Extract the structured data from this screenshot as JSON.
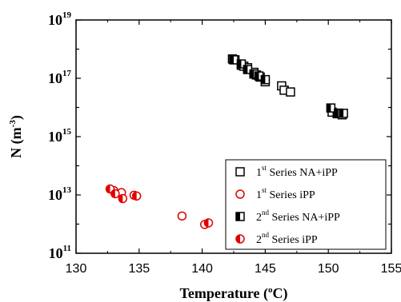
{
  "chart_data": {
    "type": "scatter",
    "title": "",
    "xlabel": {
      "pre": "Temperature (",
      "sup": "o",
      "post": "C)"
    },
    "ylabel": {
      "pre": "N (m",
      "sup": "-3",
      "post": ")"
    },
    "x_scale": "linear",
    "y_scale": "log",
    "xlim": [
      130,
      155
    ],
    "ylim": [
      100000000000.0,
      1e+19
    ],
    "x_ticks": [
      130,
      135,
      140,
      145,
      150,
      155
    ],
    "y_ticks": [
      {
        "base": "10",
        "exp": "11",
        "value": 100000000000.0
      },
      {
        "base": "10",
        "exp": "13",
        "value": 10000000000000.0
      },
      {
        "base": "10",
        "exp": "15",
        "value": 1000000000000000.0
      },
      {
        "base": "10",
        "exp": "17",
        "value": 1e+17
      },
      {
        "base": "10",
        "exp": "19",
        "value": 1e+19
      }
    ],
    "grid": false,
    "legend_position": "bottom-right",
    "series": [
      {
        "name": {
          "pre": "1",
          "sup": "st",
          "post": " Series NA+iPP"
        },
        "marker": "square-open",
        "color": "#000000",
        "points": [
          [
            142.4,
            4.6e+17
          ],
          [
            142.6,
            4.3e+17
          ],
          [
            143.1,
            2.8e+17
          ],
          [
            143.3,
            2.6e+17
          ],
          [
            143.6,
            2.3e+17
          ],
          [
            144.1,
            1.6e+17
          ],
          [
            144.3,
            1.3e+17
          ],
          [
            144.6,
            1.1e+17
          ],
          [
            145.0,
            7.6e+16
          ],
          [
            146.3,
            5.5e+16
          ],
          [
            146.5,
            3.9e+16
          ],
          [
            147.0,
            3.4e+16
          ],
          [
            150.3,
            6900000000000000.0
          ],
          [
            150.7,
            6100000000000000.0
          ],
          [
            151.1,
            5600000000000000.0
          ]
        ]
      },
      {
        "name": {
          "pre": "1",
          "sup": "st",
          "post": " Series iPP"
        },
        "marker": "circle-open",
        "color": "#e00000",
        "points": [
          [
            133.0,
            14000000000000.0
          ],
          [
            133.6,
            12000000000000.0
          ],
          [
            134.6,
            9800000000000.0
          ],
          [
            138.4,
            1900000000000.0
          ],
          [
            140.2,
            970000000000.0
          ]
        ]
      },
      {
        "name": {
          "pre": "2",
          "sup": "nd",
          "post": " Series NA+iPP"
        },
        "marker": "square-half",
        "color": "#000000",
        "points": [
          [
            142.5,
            4.3e+17
          ],
          [
            143.1,
            3.1e+17
          ],
          [
            143.6,
            2e+17
          ],
          [
            144.1,
            1.4e+17
          ],
          [
            144.5,
            1.2e+17
          ],
          [
            145.0,
            9e+16
          ],
          [
            150.2,
            9600000000000000.0
          ],
          [
            150.8,
            6400000000000000.0
          ],
          [
            151.2,
            6300000000000000.0
          ]
        ]
      },
      {
        "name": {
          "pre": "2",
          "sup": "nd",
          "post": " Series iPP"
        },
        "marker": "circle-half",
        "color": "#e00000",
        "points": [
          [
            132.7,
            16000000000000.0
          ],
          [
            133.1,
            11000000000000.0
          ],
          [
            133.7,
            7500000000000.0
          ],
          [
            134.8,
            9200000000000.0
          ],
          [
            140.5,
            1100000000000.0
          ]
        ]
      }
    ]
  }
}
